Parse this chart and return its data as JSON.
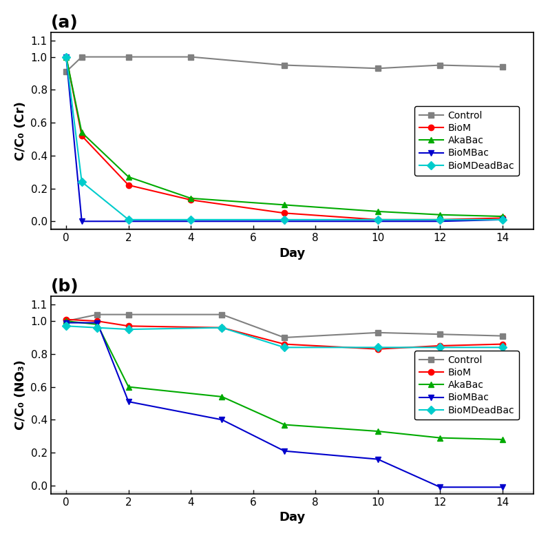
{
  "panel_a": {
    "title": "(a)",
    "ylabel": "C/C₀ (Cr)",
    "xlabel": "Day",
    "ylim": [
      -0.05,
      1.15
    ],
    "yticks": [
      0.0,
      0.2,
      0.4,
      0.6,
      0.8,
      1.0,
      1.1
    ],
    "xticks": [
      0,
      2,
      4,
      6,
      8,
      10,
      12,
      14
    ],
    "series": {
      "Control": {
        "x": [
          0,
          0.5,
          2,
          4,
          7,
          10,
          12,
          14
        ],
        "y": [
          0.91,
          1.0,
          1.0,
          1.0,
          0.95,
          0.93,
          0.95,
          0.94
        ],
        "color": "#808080",
        "marker": "s",
        "linestyle": "-"
      },
      "BioM": {
        "x": [
          0,
          0.5,
          2,
          4,
          7,
          10,
          12,
          14
        ],
        "y": [
          1.0,
          0.52,
          0.22,
          0.13,
          0.05,
          0.01,
          0.01,
          0.02
        ],
        "color": "#ff0000",
        "marker": "o",
        "linestyle": "-"
      },
      "AkaBac": {
        "x": [
          0,
          0.5,
          2,
          4,
          7,
          10,
          12,
          14
        ],
        "y": [
          1.0,
          0.54,
          0.27,
          0.14,
          0.1,
          0.06,
          0.04,
          0.03
        ],
        "color": "#00aa00",
        "marker": "^",
        "linestyle": "-"
      },
      "BioMBac": {
        "x": [
          0,
          0.5,
          2,
          4,
          7,
          10,
          12,
          14
        ],
        "y": [
          1.0,
          0.0,
          0.0,
          0.0,
          0.0,
          0.0,
          0.0,
          0.01
        ],
        "color": "#0000cc",
        "marker": "v",
        "linestyle": "-"
      },
      "BioMDeadBac": {
        "x": [
          0,
          0.5,
          2,
          4,
          7,
          10,
          12,
          14
        ],
        "y": [
          1.0,
          0.24,
          0.01,
          0.01,
          0.01,
          0.01,
          0.01,
          0.01
        ],
        "color": "#00cccc",
        "marker": "D",
        "linestyle": "-"
      }
    }
  },
  "panel_b": {
    "title": "(b)",
    "ylabel": "C/C₀ (NO₃)",
    "xlabel": "Day",
    "ylim": [
      -0.05,
      1.15
    ],
    "yticks": [
      0.0,
      0.2,
      0.4,
      0.6,
      0.8,
      1.0,
      1.1
    ],
    "xticks": [
      0,
      2,
      4,
      6,
      8,
      10,
      12,
      14
    ],
    "series": {
      "Control": {
        "x": [
          0,
          1,
          2,
          5,
          7,
          10,
          12,
          14
        ],
        "y": [
          1.0,
          1.04,
          1.04,
          1.04,
          0.9,
          0.93,
          0.92,
          0.91
        ],
        "color": "#808080",
        "marker": "s",
        "linestyle": "-"
      },
      "BioM": {
        "x": [
          0,
          1,
          2,
          5,
          7,
          10,
          12,
          14
        ],
        "y": [
          1.01,
          1.0,
          0.97,
          0.96,
          0.86,
          0.83,
          0.85,
          0.86
        ],
        "color": "#ff0000",
        "marker": "o",
        "linestyle": "-"
      },
      "AkaBac": {
        "x": [
          0,
          1,
          2,
          5,
          7,
          10,
          12,
          14
        ],
        "y": [
          1.0,
          0.98,
          0.6,
          0.54,
          0.37,
          0.33,
          0.29,
          0.28
        ],
        "color": "#00aa00",
        "marker": "^",
        "linestyle": "-"
      },
      "BioMBac": {
        "x": [
          0,
          1,
          2,
          5,
          7,
          10,
          12,
          14
        ],
        "y": [
          0.99,
          0.99,
          0.51,
          0.4,
          0.21,
          0.16,
          -0.01,
          -0.01
        ],
        "color": "#0000cc",
        "marker": "v",
        "linestyle": "-"
      },
      "BioMDeadBac": {
        "x": [
          0,
          1,
          2,
          5,
          7,
          10,
          12,
          14
        ],
        "y": [
          0.97,
          0.96,
          0.95,
          0.96,
          0.84,
          0.84,
          0.84,
          0.84
        ],
        "color": "#00cccc",
        "marker": "D",
        "linestyle": "-"
      }
    }
  },
  "legend_order": [
    "Control",
    "BioM",
    "AkaBac",
    "BioMBac",
    "BioMDeadBac"
  ],
  "background_color": "#ffffff",
  "border_color": "#000000"
}
